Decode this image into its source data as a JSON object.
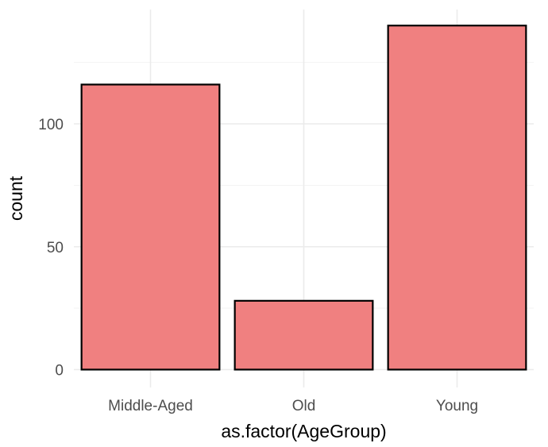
{
  "chart_data": {
    "type": "bar",
    "categories": [
      "Middle-Aged",
      "Old",
      "Young"
    ],
    "values": [
      116,
      28,
      140
    ],
    "xlabel": "as.factor(AgeGroup)",
    "ylabel": "count",
    "ylim": [
      0,
      145
    ],
    "yticks": [
      0,
      50,
      100
    ],
    "grid": true,
    "bar_color": "#F08080",
    "bar_outline": "#000000"
  }
}
